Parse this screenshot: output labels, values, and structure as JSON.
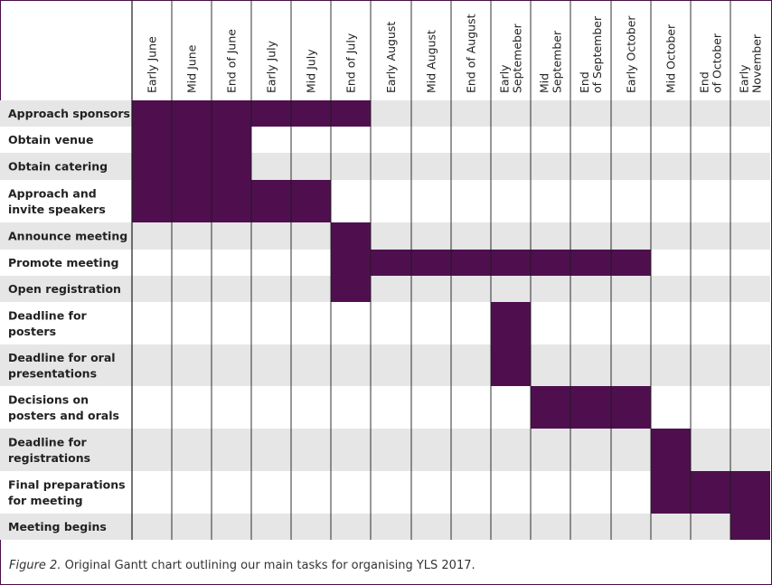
{
  "chart_data": {
    "type": "gantt",
    "periods": [
      "Early June",
      "Mid June",
      "End of June",
      "Early July",
      "Mid July",
      "End of July",
      "Early August",
      "Mid August",
      "End of August",
      "Early Septemeber",
      "Mid September",
      "End of September",
      "Early October",
      "Mid October",
      "End of October",
      "Early November"
    ],
    "tasks": [
      {
        "name": "Approach sponsors",
        "start": "Early June",
        "end": "End of July"
      },
      {
        "name": "Obtain venue",
        "start": "Early June",
        "end": "End of June"
      },
      {
        "name": "Obtain catering",
        "start": "Early June",
        "end": "End of June"
      },
      {
        "name": "Approach and invite speakers",
        "start": "Early June",
        "end": "Mid July"
      },
      {
        "name": "Announce meeting",
        "start": "End of July",
        "end": "End of July"
      },
      {
        "name": "Promote meeting",
        "start": "End of July",
        "end": "Early October"
      },
      {
        "name": "Open registration",
        "start": "End of July",
        "end": "End of July"
      },
      {
        "name": "Deadline for posters",
        "start": "Early Septemeber",
        "end": "Early Septemeber"
      },
      {
        "name": "Deadline for oral presentations",
        "start": "Early Septemeber",
        "end": "Early Septemeber"
      },
      {
        "name": "Decisions on posters and orals",
        "start": "Mid September",
        "end": "Early October"
      },
      {
        "name": "Deadline for registrations",
        "start": "Mid October",
        "end": "Mid October"
      },
      {
        "name": "Final preparations for meeting",
        "start": "Mid October",
        "end": "Early November"
      },
      {
        "name": "Meeting begins",
        "start": "Early November",
        "end": "Early November"
      }
    ],
    "colors": {
      "bar": "#4f0f4f",
      "row_shaded": "#e6e6e6",
      "row_plain": "#ffffff",
      "grid": "#1a1a1a",
      "frame": "#4b0f4b"
    }
  },
  "caption": {
    "prefix": "Figure 2.",
    "text": " Original Gantt chart outlining our main tasks for organising YLS 2017."
  }
}
